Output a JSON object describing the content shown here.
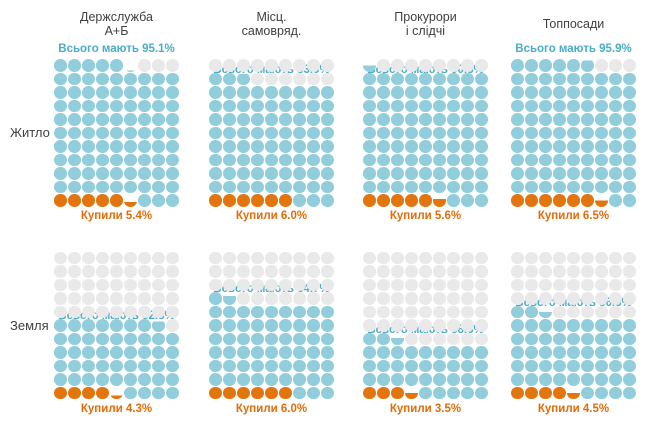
{
  "chart_data": {
    "type": "waffle",
    "description": "Grid of 8 waffle charts (9 columns x 11 rows of dots, 1 dot = 1%). Blue = share who own, orange = share who bought, gray = rest.",
    "grid": {
      "columns": 9,
      "rows": 11,
      "percent_per_dot": 1
    },
    "column_headers": [
      [
        "Держслужба",
        "А+Б"
      ],
      [
        "Місц.",
        "самовряд."
      ],
      [
        "Прокурори",
        "і слідчі"
      ],
      [
        "Топпосади"
      ]
    ],
    "row_labels": [
      "Житло",
      "Земля"
    ],
    "have_label_prefix": "Всього мають",
    "bought_label_prefix": "Купили",
    "cells": [
      {
        "row": "Житло",
        "column": "Держслужба А+Б",
        "have_pct": 95.1,
        "bought_pct": 5.4,
        "have_label": "Всього мають 95.1%",
        "bought_label": "Купили 5.4%"
      },
      {
        "row": "Житло",
        "column": "Місц. самовряд.",
        "have_pct": 83.9,
        "bought_pct": 6.0,
        "have_label": "Всього мають 83.9%",
        "bought_label": "Купили 6.0%"
      },
      {
        "row": "Житло",
        "column": "Прокурори і слідчі",
        "have_pct": 90.5,
        "bought_pct": 5.6,
        "have_label": "Всього мають 90.5%",
        "bought_label": "Купили 5.6%"
      },
      {
        "row": "Житло",
        "column": "Топпосади",
        "have_pct": 95.9,
        "bought_pct": 6.5,
        "have_label": "Всього мають 95.9%",
        "bought_label": "Купили 6.5%"
      },
      {
        "row": "Земля",
        "column": "Держслужба А+Б",
        "have_pct": 52.8,
        "bought_pct": 4.3,
        "have_label": "Всього мають 52.8%",
        "bought_label": "Купили 4.3%"
      },
      {
        "row": "Земля",
        "column": "Місц. самовряд.",
        "have_pct": 64.7,
        "bought_pct": 6.0,
        "have_label": "Всього мають 64.7%",
        "bought_label": "Купили 6.0%"
      },
      {
        "row": "Земля",
        "column": "Прокурори і слідчі",
        "have_pct": 38.6,
        "bought_pct": 3.5,
        "have_label": "Всього мають 38.6%",
        "bought_label": "Купили 3.5%"
      },
      {
        "row": "Земля",
        "column": "Топпосади",
        "have_pct": 56.5,
        "bought_pct": 4.5,
        "have_label": "Всього мають 56.5%",
        "bought_label": "Купили 4.5%"
      }
    ],
    "colors": {
      "have_dot": "#92CDDC",
      "bought_dot": "#E2750E",
      "empty_dot": "#E9E9E9",
      "partial_dot_rest": "#FFFFFF",
      "have_text": "#4BACC6",
      "bought_text": "#E36C09",
      "text": "#404040"
    },
    "legend_position": "none",
    "grid_lines": false
  }
}
